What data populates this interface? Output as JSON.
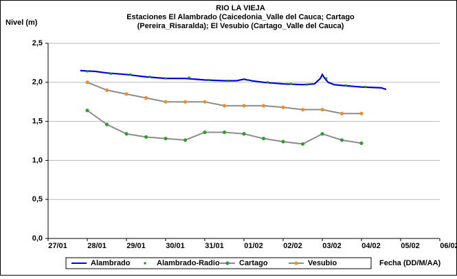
{
  "chart_data": {
    "type": "line",
    "title": "RIO LA VIEJA",
    "subtitle": [
      "Estaciones El Alambrado (Caicedonia_Valle del Cauca; Cartago",
      "(Pereira_Risaralda);  El Vesubio (Cartago_Valle del Cauca)"
    ],
    "y_label": "Nivel (m)",
    "x_label": "Fecha (DD/M/AA)",
    "xlim": [
      0,
      10
    ],
    "xticks": [
      {
        "value": 0,
        "label": "27/01"
      },
      {
        "value": 1,
        "label": "28/01"
      },
      {
        "value": 2,
        "label": "29/01"
      },
      {
        "value": 3,
        "label": "30/01"
      },
      {
        "value": 4,
        "label": "31/01"
      },
      {
        "value": 5,
        "label": "01/02"
      },
      {
        "value": 6,
        "label": "02/02"
      },
      {
        "value": 7,
        "label": "03/02"
      },
      {
        "value": 8,
        "label": "04/02"
      },
      {
        "value": 9,
        "label": "05/02"
      },
      {
        "value": 10,
        "label": "06/02"
      }
    ],
    "ylim": [
      0,
      2.5
    ],
    "yticks": [
      {
        "value": 0,
        "label": "0,0"
      },
      {
        "value": 0.5,
        "label": "0,5"
      },
      {
        "value": 1,
        "label": "1,0"
      },
      {
        "value": 1.5,
        "label": "1,5"
      },
      {
        "value": 2,
        "label": "2,0"
      },
      {
        "value": 2.5,
        "label": "2,5"
      }
    ],
    "grid": true,
    "legend": "bottom",
    "series": [
      {
        "name": "Alambrado",
        "style": "line",
        "color": "#0000dd",
        "x": [
          0.82,
          1.2,
          1.5,
          2,
          2.5,
          3,
          3.5,
          4,
          4.5,
          4.8,
          5,
          5.2,
          5.5,
          6,
          6.5,
          6.8,
          6.95,
          7.0,
          7.05,
          7.15,
          7.3,
          7.5,
          8,
          8.5,
          8.63
        ],
        "values": [
          2.15,
          2.14,
          2.12,
          2.1,
          2.07,
          2.05,
          2.05,
          2.03,
          2.02,
          2.02,
          2.04,
          2.02,
          2.0,
          1.98,
          1.97,
          1.98,
          2.05,
          2.1,
          2.06,
          2.0,
          1.97,
          1.96,
          1.94,
          1.93,
          1.91
        ]
      },
      {
        "name": "Alambrado-Radio",
        "style": "markers",
        "color": "#009900",
        "x": [
          1.0,
          1.6,
          2.1,
          2.6,
          3.0,
          3.6,
          4.1,
          4.6,
          5.1,
          5.6,
          6.2,
          6.6,
          7.1,
          7.6,
          8.1
        ],
        "values": [
          2.14,
          2.11,
          2.1,
          2.07,
          2.05,
          2.06,
          2.03,
          2.02,
          2.03,
          2.0,
          1.98,
          1.97,
          2.05,
          1.96,
          1.94
        ]
      },
      {
        "name": "Cartago",
        "style": "line-markers",
        "color": "#2e9e2e",
        "line_color": "#8c8c8c",
        "x": [
          1,
          1.5,
          2,
          2.5,
          3,
          3.5,
          4,
          4.5,
          5,
          5.5,
          6,
          6.5,
          7,
          7.5,
          8
        ],
        "values": [
          1.64,
          1.46,
          1.34,
          1.3,
          1.28,
          1.26,
          1.36,
          1.36,
          1.34,
          1.28,
          1.24,
          1.21,
          1.34,
          1.26,
          1.22
        ]
      },
      {
        "name": "Vesubio",
        "style": "line-markers",
        "color": "#f08c28",
        "line_color": "#8c8c8c",
        "x": [
          1,
          1.5,
          2,
          2.5,
          3,
          3.5,
          4,
          4.5,
          5,
          5.5,
          6,
          6.5,
          7,
          7.5,
          8
        ],
        "values": [
          2.0,
          1.9,
          1.85,
          1.8,
          1.75,
          1.75,
          1.75,
          1.7,
          1.7,
          1.7,
          1.68,
          1.65,
          1.65,
          1.6,
          1.6
        ]
      }
    ]
  }
}
